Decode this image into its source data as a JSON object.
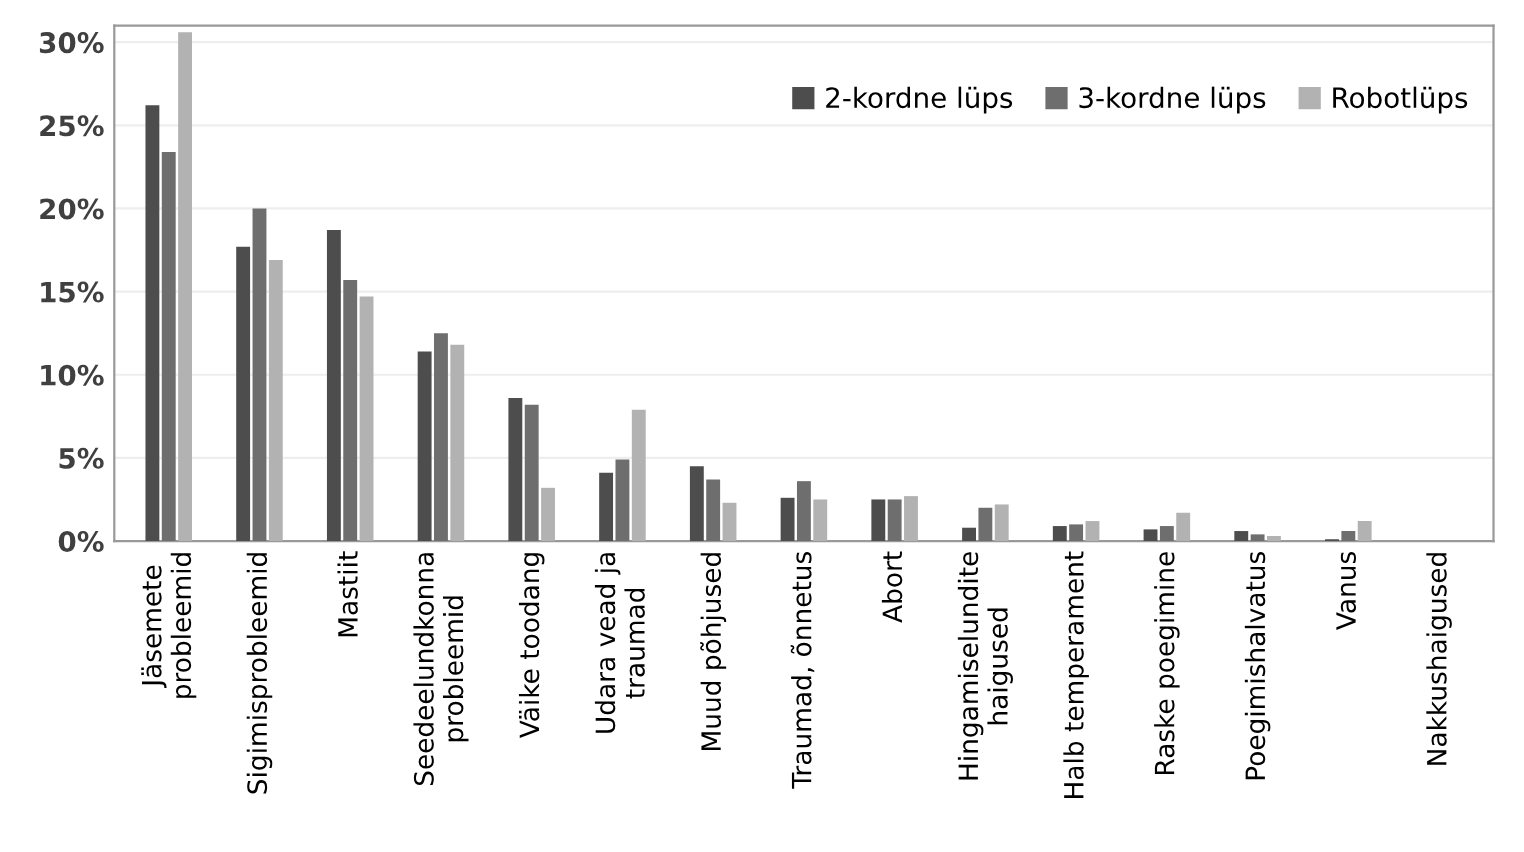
{
  "chart_data": {
    "type": "bar",
    "categories": [
      "Jäsemete\nprobleemid",
      "Sigimisprobleemid",
      "Mastiit",
      "Seedeelundkonna\nprobleemid",
      "Väike toodang",
      "Udara vead ja\ntraumad",
      "Muud põhjused",
      "Traumad, õnnetus",
      "Abort",
      "Hingamiselundite\nhaigused",
      "Halb temperament",
      "Raske poegimine",
      "Poegimishalvatus",
      "Vanus",
      "Nakkushaigused"
    ],
    "series": [
      {
        "name": "2-kordne lüps",
        "color": "#4d4d4d",
        "values": [
          26.2,
          17.7,
          18.7,
          11.4,
          8.6,
          4.1,
          4.5,
          2.6,
          2.5,
          0.8,
          0.9,
          0.7,
          0.6,
          0.1,
          0
        ]
      },
      {
        "name": "3-kordne lüps",
        "color": "#6e6e6e",
        "values": [
          23.4,
          20.0,
          15.7,
          12.5,
          8.2,
          4.9,
          3.7,
          3.6,
          2.5,
          2.0,
          1.0,
          0.9,
          0.4,
          0.6,
          0
        ]
      },
      {
        "name": "Robotlüps",
        "color": "#b2b2b2",
        "values": [
          30.6,
          16.9,
          14.7,
          11.8,
          3.2,
          7.9,
          2.3,
          2.5,
          2.7,
          2.2,
          1.2,
          1.7,
          0.3,
          1.2,
          0
        ]
      }
    ],
    "ylim": [
      0,
      31
    ],
    "yticks": [
      {
        "value": 0,
        "label": "0%"
      },
      {
        "value": 5,
        "label": "5%"
      },
      {
        "value": 10,
        "label": "10%"
      },
      {
        "value": 15,
        "label": "15%"
      },
      {
        "value": 20,
        "label": "20%"
      },
      {
        "value": 25,
        "label": "25%"
      },
      {
        "value": 30,
        "label": "30%"
      }
    ],
    "grid": "y",
    "legend": "top right"
  }
}
